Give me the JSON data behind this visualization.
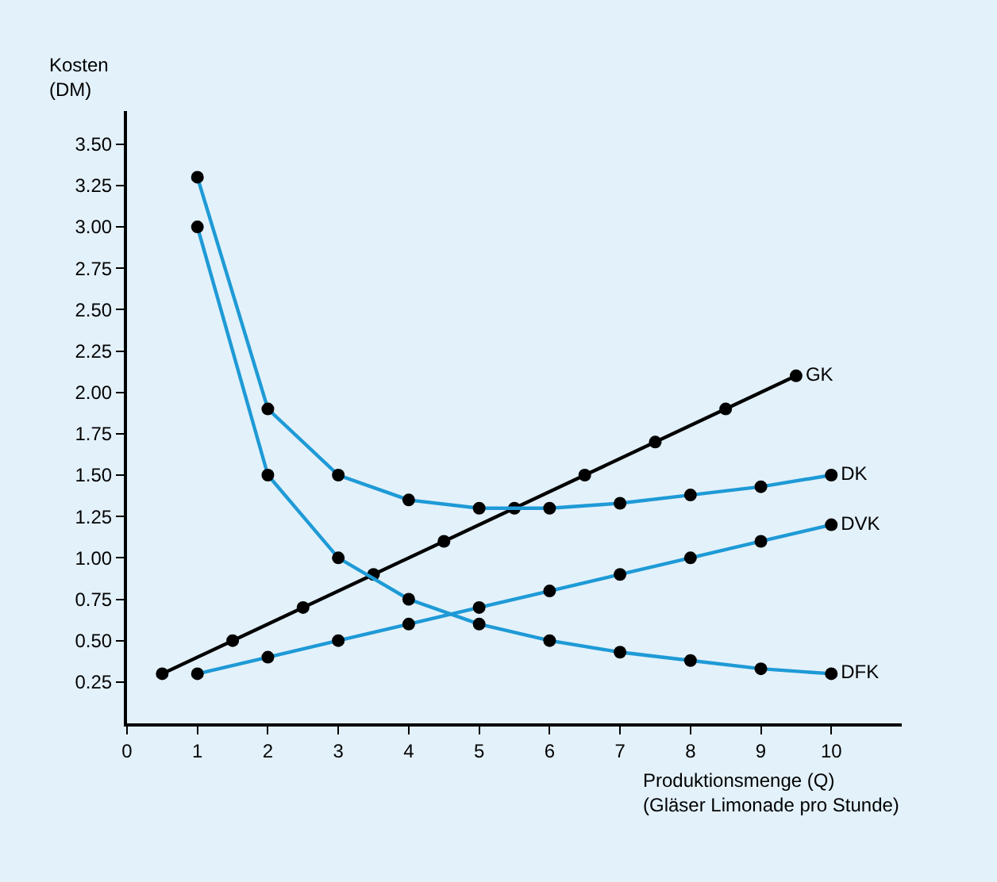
{
  "chart_data": {
    "type": "line",
    "xlabel": "Produktionsmenge (Q)\n(Gläser Limonade pro Stunde)",
    "ylabel": "Kosten\n(DM)",
    "x": [
      1,
      2,
      3,
      4,
      5,
      6,
      7,
      8,
      9,
      10
    ],
    "xlim": [
      0,
      11
    ],
    "ylim": [
      0,
      3.7
    ],
    "xticks": [
      0,
      1,
      2,
      3,
      4,
      5,
      6,
      7,
      8,
      9,
      10
    ],
    "yticks": [
      {
        "value": 0.25,
        "label": "0.25"
      },
      {
        "value": 0.5,
        "label": "0.50"
      },
      {
        "value": 0.75,
        "label": "0.75"
      },
      {
        "value": 1.0,
        "label": "1.00"
      },
      {
        "value": 1.25,
        "label": "1.25"
      },
      {
        "value": 1.5,
        "label": "1.50"
      },
      {
        "value": 1.75,
        "label": "1.75"
      },
      {
        "value": 2.0,
        "label": "2.00"
      },
      {
        "value": 2.25,
        "label": "2.25"
      },
      {
        "value": 2.5,
        "label": "2.50"
      },
      {
        "value": 2.75,
        "label": "2.75"
      },
      {
        "value": 3.0,
        "label": "3.00"
      },
      {
        "value": 3.25,
        "label": "3.25"
      },
      {
        "value": 3.5,
        "label": "3.50"
      }
    ],
    "marker": "circle",
    "line_style": "solid",
    "grid": false,
    "legend": false,
    "series": [
      {
        "name": "GK",
        "color": "#000000",
        "x": [
          0.5,
          1.5,
          2.5,
          3.5,
          4.5,
          5.5,
          6.5,
          7.5,
          8.5,
          9.5
        ],
        "values": [
          0.3,
          0.5,
          0.7,
          0.9,
          1.1,
          1.3,
          1.5,
          1.7,
          1.9,
          2.1
        ]
      },
      {
        "name": "DK",
        "color": "#1e9ad6",
        "values": [
          3.3,
          1.9,
          1.5,
          1.35,
          1.3,
          1.3,
          1.33,
          1.38,
          1.43,
          1.5
        ]
      },
      {
        "name": "DVK",
        "color": "#1e9ad6",
        "values": [
          0.3,
          0.4,
          0.5,
          0.6,
          0.7,
          0.8,
          0.9,
          1.0,
          1.1,
          1.2
        ]
      },
      {
        "name": "DFK",
        "color": "#1e9ad6",
        "values": [
          3.0,
          1.5,
          1.0,
          0.75,
          0.6,
          0.5,
          0.43,
          0.38,
          0.33,
          0.3
        ]
      }
    ]
  }
}
